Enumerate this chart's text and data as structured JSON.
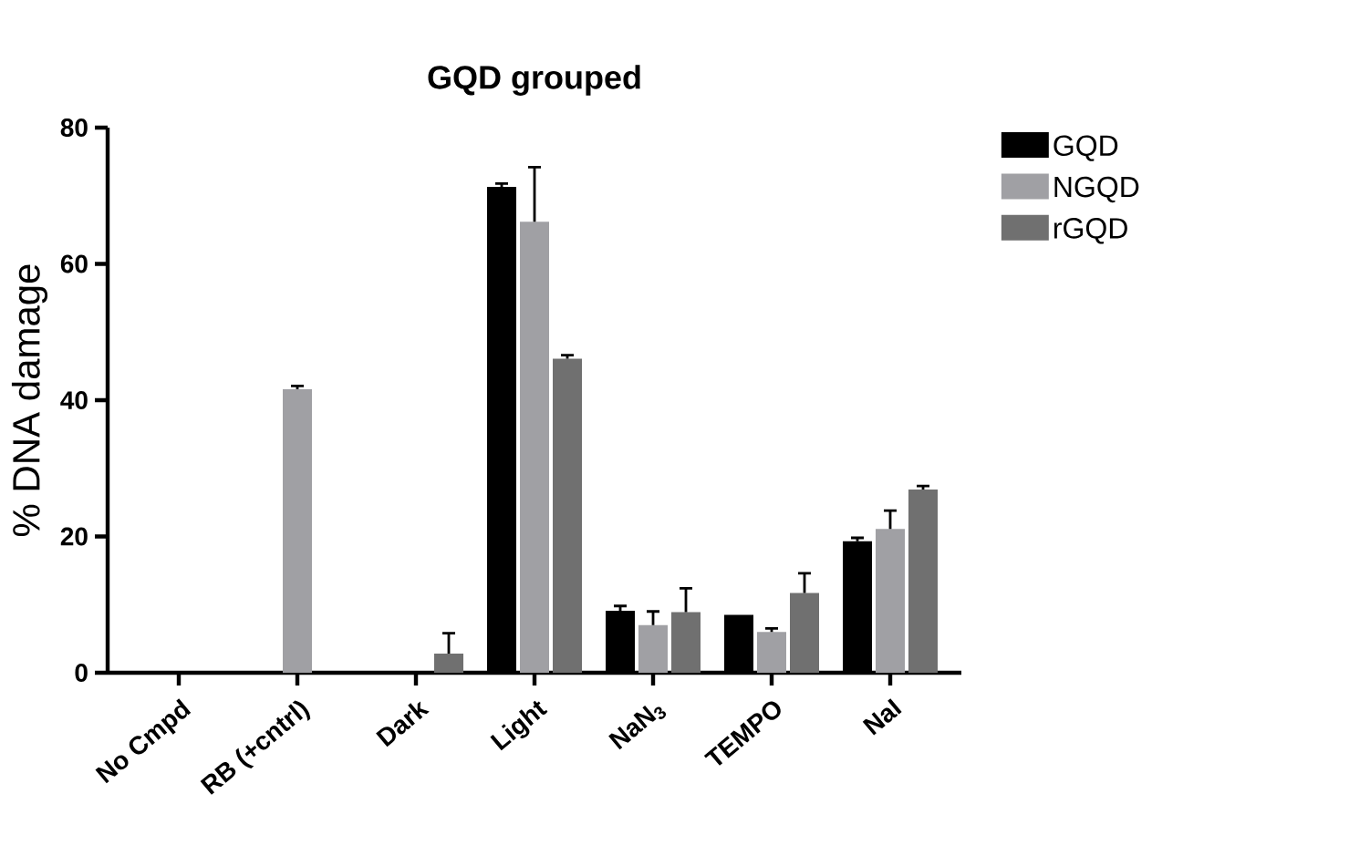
{
  "chart_data": {
    "type": "bar",
    "title": "GQD grouped",
    "ylabel": "% DNA damage",
    "categories": [
      "No Cmpd",
      "RB (+cntrl)",
      "Dark",
      "Light",
      "NaN$_{3}$",
      "TEMPO",
      "NaI"
    ],
    "series": [
      {
        "name": "GQD",
        "color": "#000000",
        "values": [
          0,
          0,
          0,
          71.3,
          9.1,
          8.5,
          19.3
        ],
        "errors": [
          null,
          null,
          null,
          [
            71.3,
            71.8
          ],
          [
            9.1,
            9.8
          ],
          null,
          [
            19.3,
            19.8
          ]
        ]
      },
      {
        "name": "NGQD",
        "color": "#a0a0a4",
        "values": [
          0,
          41.6,
          0,
          66.2,
          7.0,
          6.0,
          21.1
        ],
        "errors": [
          null,
          [
            41.6,
            42.1
          ],
          null,
          [
            66.2,
            74.2
          ],
          [
            7.0,
            9.0
          ],
          [
            6.0,
            6.5
          ],
          [
            21.1,
            23.8
          ]
        ]
      },
      {
        "name": "rGQD",
        "color": "#707070",
        "values": [
          0,
          0,
          2.8,
          46.1,
          8.9,
          11.7,
          26.9
        ],
        "errors": [
          null,
          null,
          [
            2.8,
            5.8
          ],
          [
            46.1,
            46.6
          ],
          [
            8.9,
            12.4
          ],
          [
            11.7,
            14.6
          ],
          [
            26.9,
            27.4
          ]
        ]
      }
    ],
    "ylim": [
      0,
      80
    ],
    "yticks": [
      0,
      20,
      40,
      60,
      80
    ],
    "legend": "top right"
  }
}
